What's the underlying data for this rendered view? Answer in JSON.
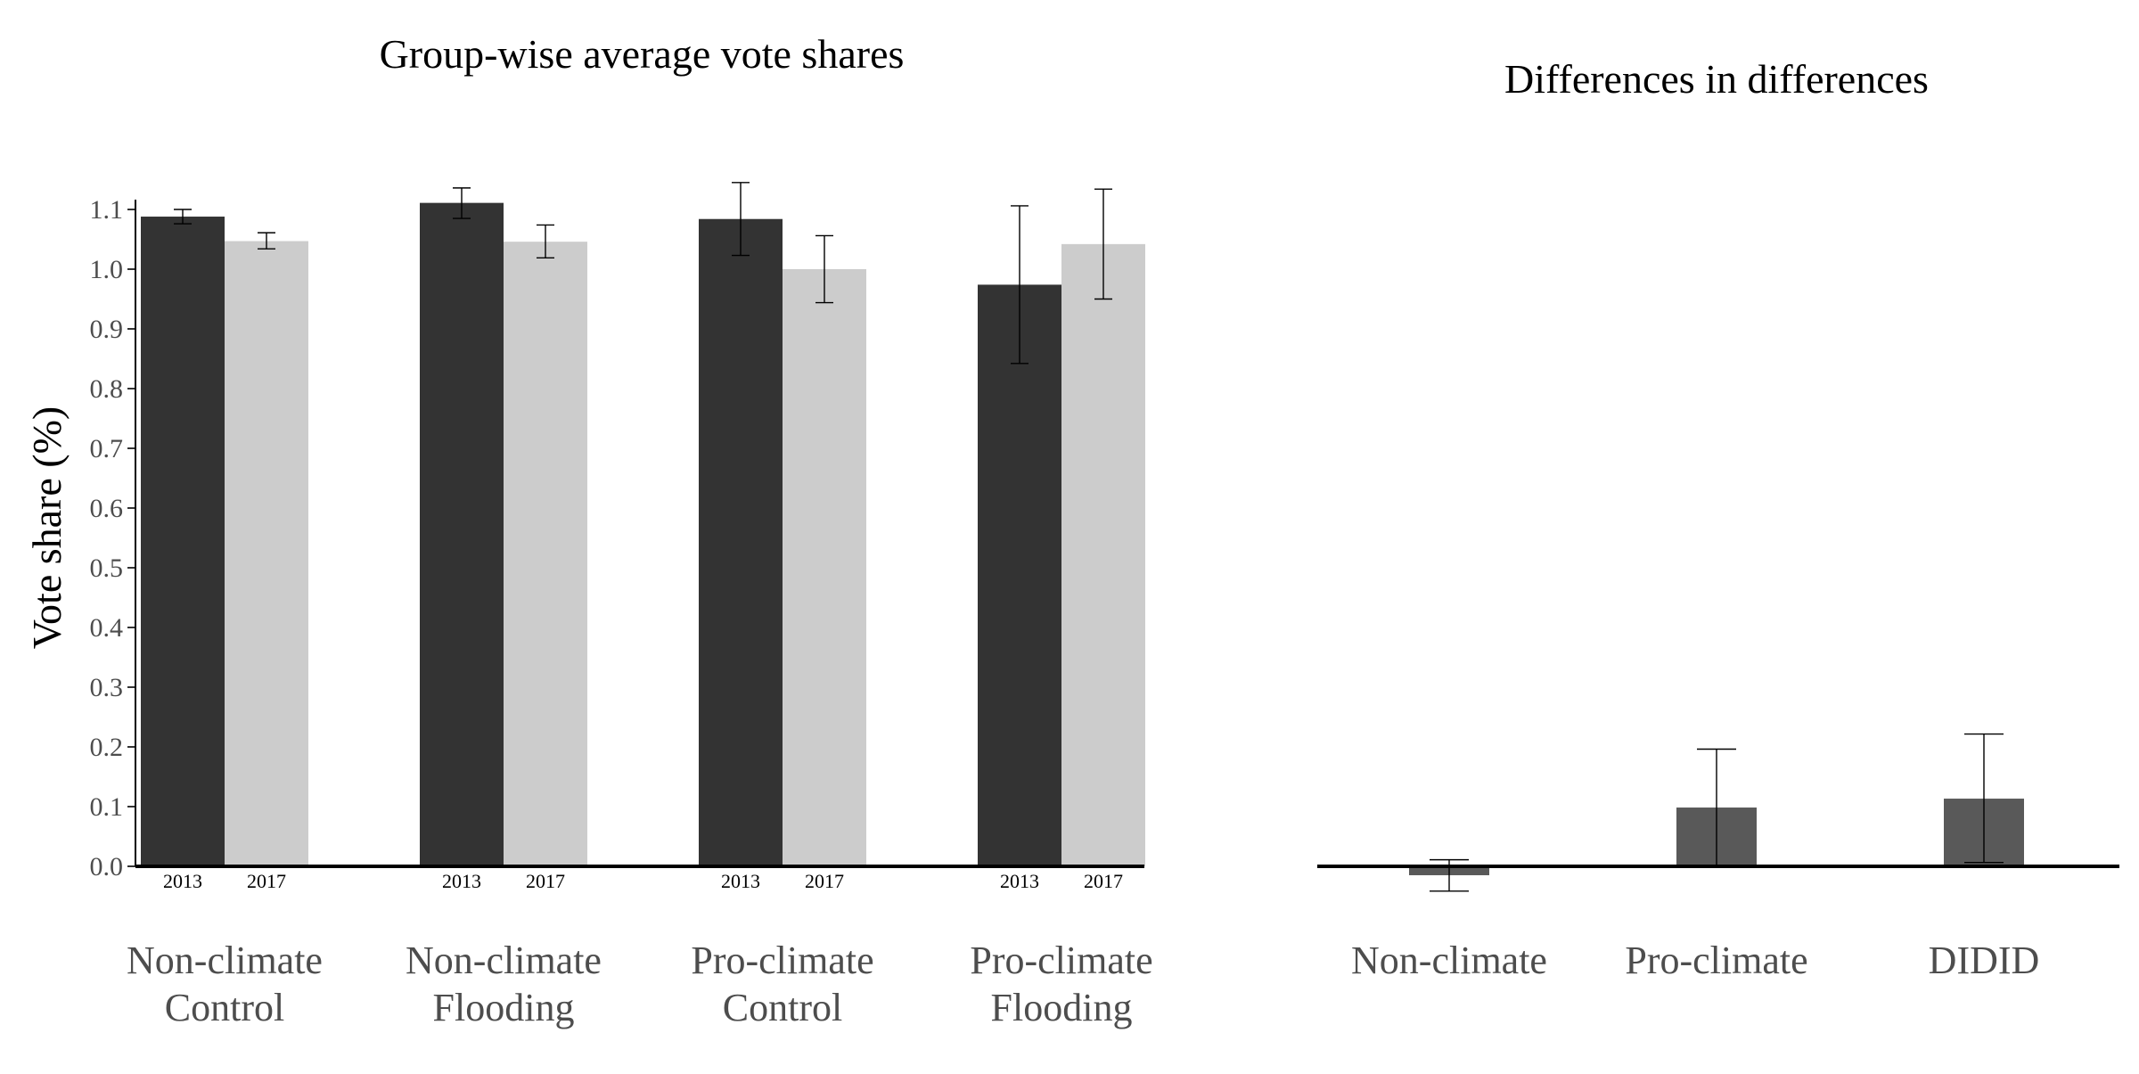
{
  "chart_data": [
    {
      "type": "bar",
      "title": "Group-wise average vote shares",
      "ylabel": "Vote share (%)",
      "xlabel": "",
      "ylim": [
        0,
        1.15
      ],
      "yticks": [
        0.0,
        0.1,
        0.2,
        0.3,
        0.4,
        0.5,
        0.6,
        0.7,
        0.8,
        0.9,
        1.0,
        1.1
      ],
      "ytick_labels": [
        "0.0",
        "0.1",
        "0.2",
        "0.3",
        "0.4",
        "0.5",
        "0.6",
        "0.7",
        "0.8",
        "0.9",
        "1.0",
        "1.1"
      ],
      "grid": false,
      "categories": [
        {
          "line1": "Non-climate",
          "line2": "Control"
        },
        {
          "line1": "Non-climate",
          "line2": "Flooding"
        },
        {
          "line1": "Pro-climate",
          "line2": "Control"
        },
        {
          "line1": "Pro-climate",
          "line2": "Flooding"
        }
      ],
      "series": [
        {
          "name": "2013",
          "color": "#333333",
          "values": [
            1.088,
            1.111,
            1.084,
            0.974
          ],
          "err_low": [
            1.076,
            1.085,
            1.023,
            0.842
          ],
          "err_high": [
            1.1,
            1.136,
            1.145,
            1.106
          ]
        },
        {
          "name": "2017",
          "color": "#cccccc",
          "values": [
            1.047,
            1.046,
            1.0,
            1.042
          ],
          "err_low": [
            1.034,
            1.019,
            0.944,
            0.95
          ],
          "err_high": [
            1.061,
            1.074,
            1.056,
            1.134
          ]
        }
      ]
    },
    {
      "type": "bar",
      "title": "Differences in differences",
      "xlabel": "",
      "ylabel": "",
      "ylim": [
        -0.1,
        1.15
      ],
      "grid": false,
      "color": "#595959",
      "categories": [
        "Non-climate",
        "Pro-climate",
        "DIDID"
      ],
      "values": [
        -0.023,
        0.152,
        0.175
      ],
      "err_low": [
        -0.064,
        0.0,
        0.01
      ],
      "err_high": [
        0.017,
        0.303,
        0.342
      ]
    }
  ]
}
